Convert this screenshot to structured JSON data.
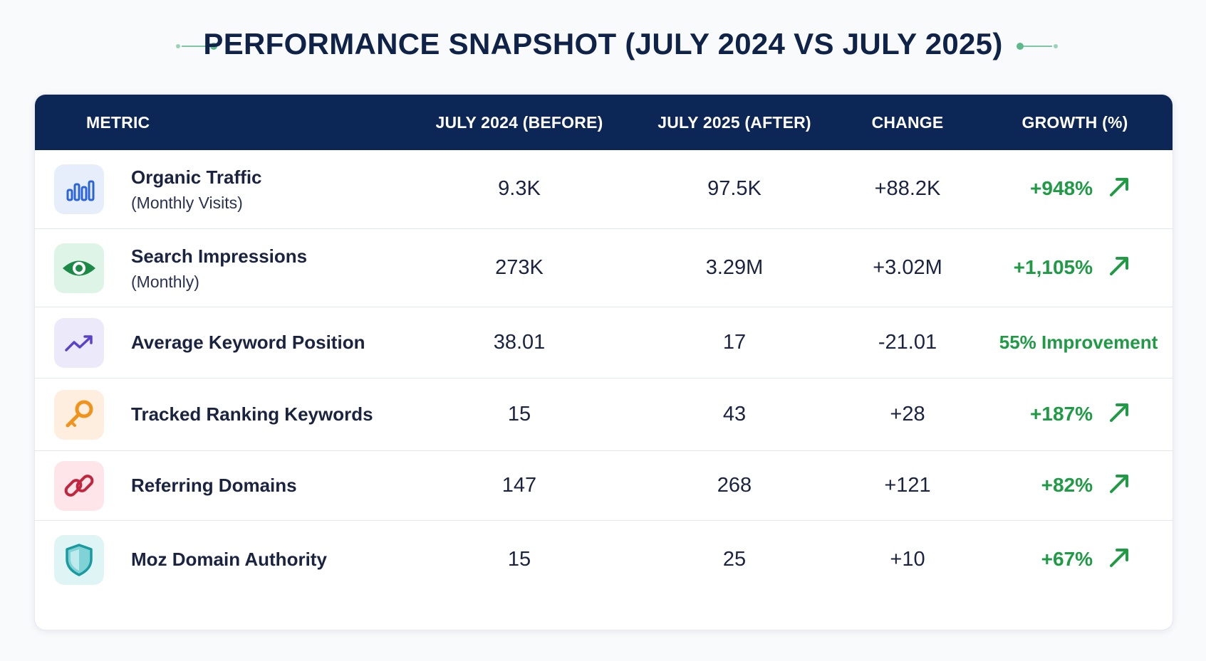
{
  "title": "PERFORMANCE SNAPSHOT (JULY 2024 VS JULY 2025)",
  "columns": {
    "metric": "METRIC",
    "before": "JULY 2024 (BEFORE)",
    "after": "JULY 2025 (AFTER)",
    "change": "CHANGE",
    "growth": "GROWTH (%)"
  },
  "rows": [
    {
      "icon": "bar-chart-icon",
      "name": "Organic Traffic",
      "sub": "(Monthly Visits)",
      "before": "9.3K",
      "after": "97.5K",
      "change": "+88.2K",
      "growth": "+948%",
      "arrow": true
    },
    {
      "icon": "eye-icon",
      "name": "Search Impressions",
      "sub": "(Monthly)",
      "before": "273K",
      "after": "3.29M",
      "change": "+3.02M",
      "growth": "+1,105%",
      "arrow": true
    },
    {
      "icon": "trend-up-icon",
      "name": "Average Keyword Position",
      "sub": "",
      "before": "38.01",
      "after": "17",
      "change": "-21.01",
      "growth": "55% Improvement",
      "arrow": false
    },
    {
      "icon": "key-icon",
      "name": "Tracked Ranking Keywords",
      "sub": "",
      "before": "15",
      "after": "43",
      "change": "+28",
      "growth": "+187%",
      "arrow": true
    },
    {
      "icon": "link-icon",
      "name": "Referring Domains",
      "sub": "",
      "before": "147",
      "after": "268",
      "change": "+121",
      "growth": "+82%",
      "arrow": true
    },
    {
      "icon": "shield-icon",
      "name": "Moz Domain Authority",
      "sub": "",
      "before": "15",
      "after": "25",
      "change": "+10",
      "growth": "+67%",
      "arrow": true
    }
  ],
  "colors": {
    "header_bg": "#0c2656",
    "growth_green": "#1f9a45",
    "title": "#0f2248"
  },
  "chart_data": {
    "type": "table",
    "title": "PERFORMANCE SNAPSHOT (JULY 2024 VS JULY 2025)",
    "columns": [
      "METRIC",
      "JULY 2024 (BEFORE)",
      "JULY 2025 (AFTER)",
      "CHANGE",
      "GROWTH (%)"
    ],
    "rows": [
      [
        "Organic Traffic (Monthly Visits)",
        "9.3K",
        "97.5K",
        "+88.2K",
        "+948%"
      ],
      [
        "Search Impressions (Monthly)",
        "273K",
        "3.29M",
        "+3.02M",
        "+1,105%"
      ],
      [
        "Average Keyword Position",
        "38.01",
        "17",
        "-21.01",
        "55% Improvement"
      ],
      [
        "Tracked Ranking Keywords",
        "15",
        "43",
        "+28",
        "+187%"
      ],
      [
        "Referring Domains",
        "147",
        "268",
        "+121",
        "+82%"
      ],
      [
        "Moz Domain Authority",
        "15",
        "25",
        "+10",
        "+67%"
      ]
    ]
  }
}
